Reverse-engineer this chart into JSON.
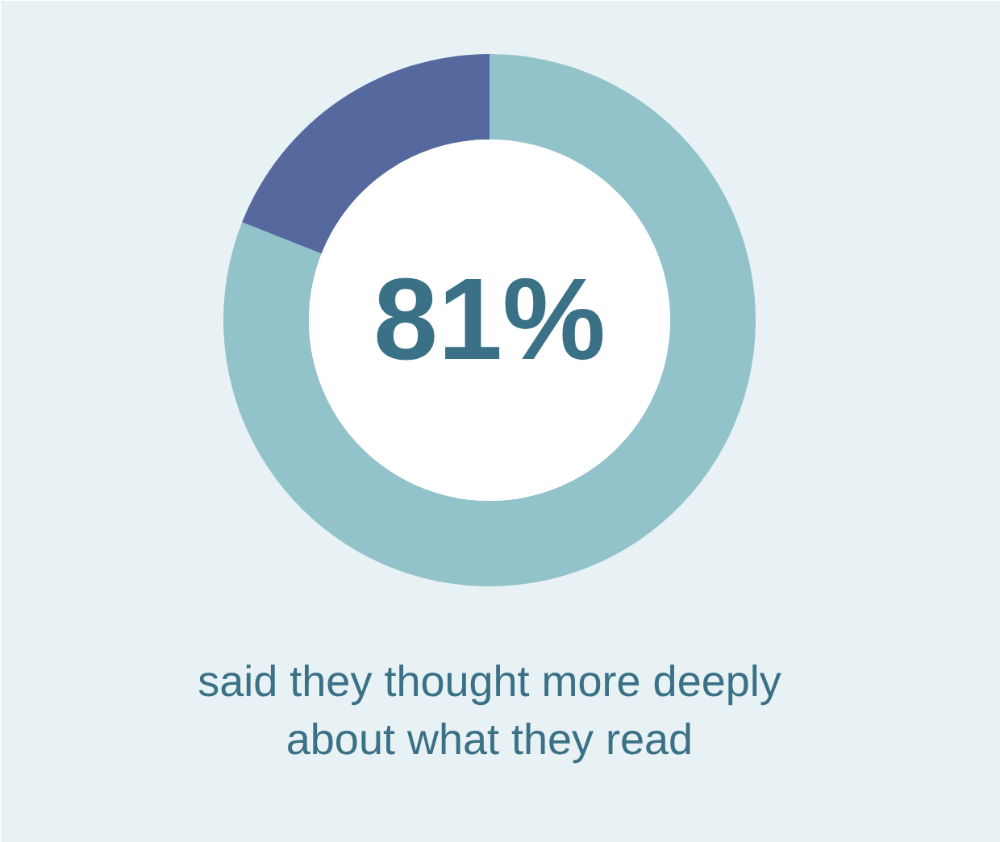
{
  "chart_data": {
    "type": "donut",
    "categories": [
      null,
      null
    ],
    "values": [
      81,
      19
    ],
    "colors": [
      "#92c3ca",
      "#56699f"
    ],
    "annotations": [
      "81%",
      "said they thought more deeply\nabout what they read"
    ]
  }
}
